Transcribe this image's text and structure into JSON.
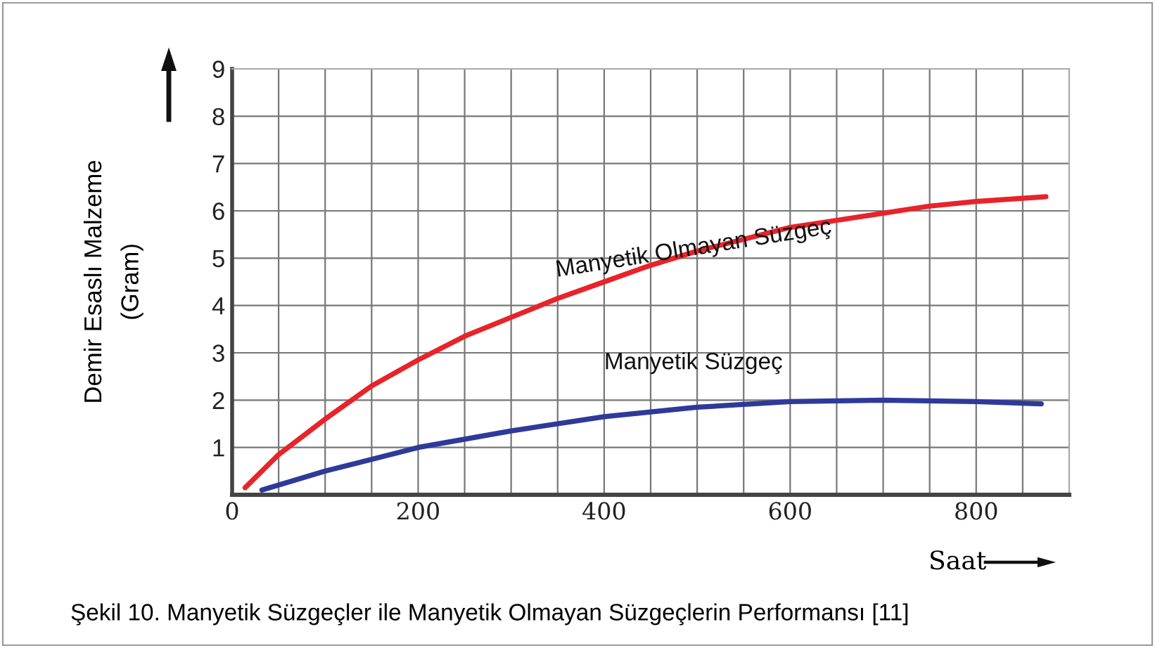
{
  "chart_data": {
    "type": "line",
    "xlabel": "Saat",
    "ylabel": "Demir Esaslı Malzeme\n(Gram)",
    "annotations": [
      "Şekil 10. Manyetik Süzgeçler ile Manyetik Olmayan Süzgeçlerin Performansı [11]"
    ],
    "xlim": [
      0,
      900
    ],
    "ylim": [
      0,
      9
    ],
    "xticks": [
      0,
      {
        "value": 50,
        "label": null
      },
      {
        "value": 100,
        "label": null
      },
      {
        "value": 150,
        "label": null
      },
      200,
      {
        "value": 250,
        "label": null
      },
      {
        "value": 300,
        "label": null
      },
      {
        "value": 350,
        "label": null
      },
      400,
      {
        "value": 450,
        "label": null
      },
      {
        "value": 500,
        "label": null
      },
      {
        "value": 550,
        "label": null
      },
      600,
      {
        "value": 650,
        "label": null
      },
      {
        "value": 700,
        "label": null
      },
      {
        "value": 750,
        "label": null
      },
      800,
      {
        "value": 850,
        "label": null
      }
    ],
    "yticks": [
      1,
      2,
      3,
      4,
      5,
      6,
      7,
      8,
      9
    ],
    "grid": true,
    "legend": false,
    "marker": "none",
    "line_style": "solid",
    "series": [
      {
        "name": "Manyetik Olmayan Süzgeç",
        "color": "#e8232a",
        "x": [
          14,
          50,
          100,
          150,
          200,
          250,
          300,
          350,
          400,
          450,
          500,
          550,
          600,
          650,
          700,
          750,
          800,
          875
        ],
        "values": [
          0.15,
          0.85,
          1.6,
          2.3,
          2.85,
          3.35,
          3.75,
          4.15,
          4.5,
          4.85,
          5.15,
          5.4,
          5.65,
          5.8,
          5.95,
          6.1,
          6.2,
          6.3
        ]
      },
      {
        "name": "Manyetik Süzgeç",
        "color": "#2e3a9a",
        "x": [
          32,
          100,
          200,
          300,
          400,
          500,
          600,
          700,
          800,
          870
        ],
        "values": [
          0.1,
          0.5,
          1.0,
          1.35,
          1.65,
          1.85,
          1.97,
          2.0,
          1.97,
          1.92
        ]
      }
    ]
  }
}
